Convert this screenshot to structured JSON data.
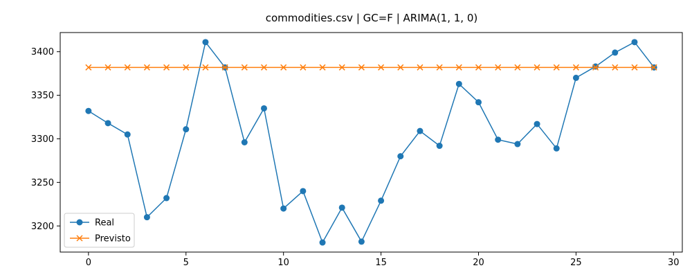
{
  "chart_data": {
    "type": "line",
    "title": "commodities.csv | GC=F | ARIMA(1, 1, 0)",
    "xlabel": "",
    "ylabel": "",
    "xlim": [
      -1.45,
      30.45
    ],
    "ylim": [
      3170,
      3422
    ],
    "xticks": [
      0,
      5,
      10,
      15,
      20,
      25,
      30
    ],
    "yticks": [
      3200,
      3250,
      3300,
      3350,
      3400
    ],
    "grid": false,
    "legend_position": "lower-left",
    "series": [
      {
        "name": "Real",
        "color": "#1f77b4",
        "marker": "circle",
        "x": [
          0,
          1,
          2,
          3,
          4,
          5,
          6,
          7,
          8,
          9,
          10,
          11,
          12,
          13,
          14,
          15,
          16,
          17,
          18,
          19,
          20,
          21,
          22,
          23,
          24,
          25,
          26,
          27,
          28,
          29
        ],
        "values": [
          3332,
          3318,
          3305,
          3210,
          3232,
          3311,
          3411,
          3382,
          3296,
          3335,
          3220,
          3240,
          3181,
          3221,
          3182,
          3229,
          3280,
          3309,
          3292,
          3363,
          3342,
          3299,
          3294,
          3317,
          3289,
          3370,
          3383,
          3399,
          3411,
          3382
        ]
      },
      {
        "name": "Previsto",
        "color": "#ff7f0e",
        "marker": "x",
        "x": [
          0,
          1,
          2,
          3,
          4,
          5,
          6,
          7,
          8,
          9,
          10,
          11,
          12,
          13,
          14,
          15,
          16,
          17,
          18,
          19,
          20,
          21,
          22,
          23,
          24,
          25,
          26,
          27,
          28,
          29
        ],
        "values": [
          3382,
          3382,
          3382,
          3382,
          3382,
          3382,
          3382,
          3382,
          3382,
          3382,
          3382,
          3382,
          3382,
          3382,
          3382,
          3382,
          3382,
          3382,
          3382,
          3382,
          3382,
          3382,
          3382,
          3382,
          3382,
          3382,
          3382,
          3382,
          3382,
          3382
        ]
      }
    ]
  }
}
